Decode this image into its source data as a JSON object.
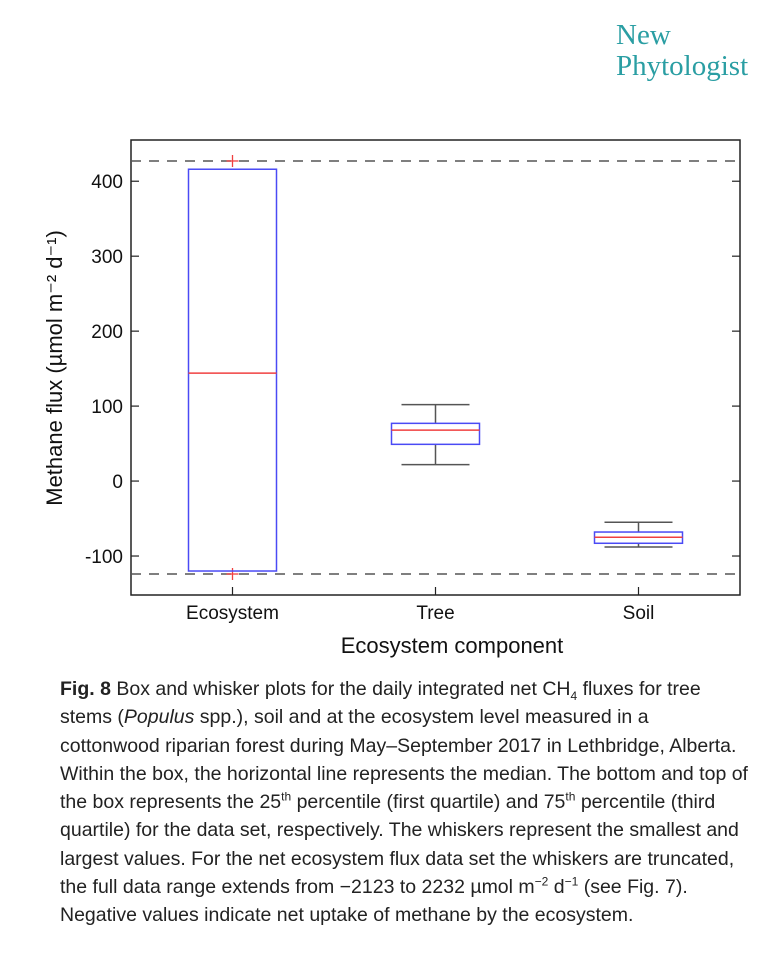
{
  "journal": {
    "line1": "New",
    "line2": "Phytologist"
  },
  "chart_data": {
    "type": "box",
    "xlabel": "Ecosystem component",
    "ylabel": "Methane flux (µmol m⁻² d⁻¹)",
    "ylim": [
      -152,
      455
    ],
    "yticks": [
      -100,
      0,
      100,
      200,
      300,
      400
    ],
    "ytick_labels": [
      "-100",
      "0",
      "100",
      "200",
      "300",
      "400"
    ],
    "categories": [
      "Ecosystem",
      "Tree",
      "Soil"
    ],
    "boxes": [
      {
        "name": "Ecosystem",
        "q1": -120,
        "median": 144,
        "q3": 416,
        "whisker_low": -124,
        "whisker_high": 427,
        "truncated": true
      },
      {
        "name": "Tree",
        "q1": 49,
        "median": 68,
        "q3": 77,
        "whisker_low": 22,
        "whisker_high": 102,
        "truncated": false
      },
      {
        "name": "Soil",
        "q1": -83,
        "median": -75,
        "q3": -68,
        "whisker_low": -88,
        "whisker_high": -55,
        "truncated": false
      }
    ],
    "reference_lines": [
      427,
      -124
    ],
    "grid": false,
    "colors": {
      "box": "#4a4af5",
      "median": "#f04040",
      "whisker": "#555555",
      "truncation": "#f04040"
    }
  },
  "caption": {
    "label": "Fig. 8",
    "t1": " Box and whisker plots for the daily integrated net CH",
    "sub1": "4",
    "t2": " fluxes for tree stems (",
    "italic1": "Populus",
    "t3": " spp.), soil and at the ecosystem level measured in a cottonwood riparian forest during May–September 2017 in Lethbridge, Alberta. Within the box, the horizontal line represents the median. The bottom and top of the box represents the 25",
    "sup1": "th",
    "t4": " percentile (first quartile) and 75",
    "sup2": "th",
    "t5": " percentile (third quartile) for the data set, respectively. The whiskers represent the smallest and largest values. For the net ecosystem flux data set the whiskers are truncated, the full data range extends from −2123 to 2232 µmol m",
    "sup3": "−2",
    "t6": " d",
    "sup4": "−1",
    "t7": " (see Fig. 7). Negative values indicate net uptake of methane by the ecosystem."
  }
}
